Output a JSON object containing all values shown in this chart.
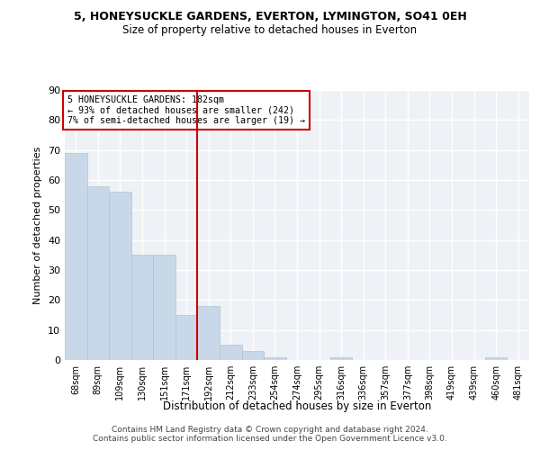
{
  "title1": "5, HONEYSUCKLE GARDENS, EVERTON, LYMINGTON, SO41 0EH",
  "title2": "Size of property relative to detached houses in Everton",
  "xlabel": "Distribution of detached houses by size in Everton",
  "ylabel": "Number of detached properties",
  "annotation_line1": "5 HONEYSUCKLE GARDENS: 182sqm",
  "annotation_line2": "← 93% of detached houses are smaller (242)",
  "annotation_line3": "7% of semi-detached houses are larger (19) →",
  "categories": [
    "68sqm",
    "89sqm",
    "109sqm",
    "130sqm",
    "151sqm",
    "171sqm",
    "192sqm",
    "212sqm",
    "233sqm",
    "254sqm",
    "274sqm",
    "295sqm",
    "316sqm",
    "336sqm",
    "357sqm",
    "377sqm",
    "398sqm",
    "419sqm",
    "439sqm",
    "460sqm",
    "481sqm"
  ],
  "values": [
    69,
    58,
    56,
    35,
    35,
    15,
    18,
    5,
    3,
    1,
    0,
    0,
    1,
    0,
    0,
    0,
    0,
    0,
    0,
    1,
    0
  ],
  "bar_color": "#c8d8e8",
  "bar_edge_color": "#b0c4d8",
  "vline_color": "#cc0000",
  "vline_x_idx": 6,
  "annotation_box_facecolor": "#ffffff",
  "annotation_box_edgecolor": "#cc0000",
  "plot_bg_color": "#eef2f7",
  "grid_color": "#ffffff",
  "fig_bg_color": "#ffffff",
  "ylim": [
    0,
    90
  ],
  "yticks": [
    0,
    10,
    20,
    30,
    40,
    50,
    60,
    70,
    80,
    90
  ],
  "footer1": "Contains HM Land Registry data © Crown copyright and database right 2024.",
  "footer2": "Contains public sector information licensed under the Open Government Licence v3.0."
}
